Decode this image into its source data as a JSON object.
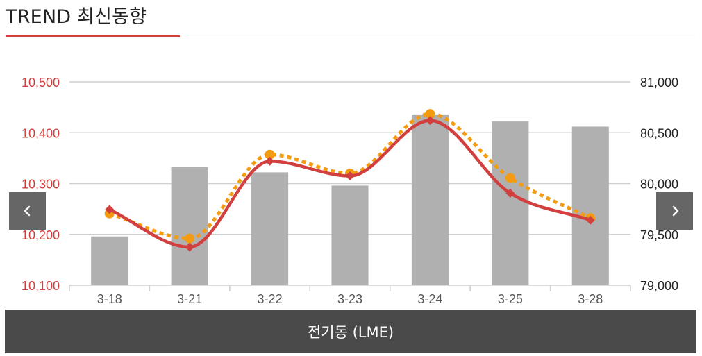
{
  "header": {
    "title": "TREND 최신동향"
  },
  "footer": {
    "label": "전기동 (LME)"
  },
  "icons": {
    "prev": "chevron-left-icon",
    "next": "chevron-right-icon"
  },
  "colors": {
    "accent": "#d23f3f",
    "bars": "#b0b0b0",
    "dotted_line": "#f39c12",
    "nav_button": "#666666",
    "footer_bar": "#4a4a4a"
  },
  "chart_data": {
    "type": "bar",
    "categories": [
      "3-18",
      "3-21",
      "3-22",
      "3-23",
      "3-24",
      "3-25",
      "3-28"
    ],
    "left_axis": {
      "min": 10100,
      "max": 10500,
      "ticks": [
        "10,100",
        "10,200",
        "10,300",
        "10,400",
        "10,500"
      ],
      "color": "#d23f3f"
    },
    "right_axis": {
      "min": 79000,
      "max": 81000,
      "ticks": [
        "79,000",
        "79,500",
        "80,000",
        "80,500",
        "81,000"
      ],
      "color": "#222222"
    },
    "series": [
      {
        "kind": "bar",
        "axis": "right",
        "color": "#b0b0b0",
        "values": [
          79480,
          80160,
          80110,
          79980,
          80680,
          80610,
          80560
        ]
      },
      {
        "kind": "line",
        "axis": "left",
        "color": "#d23f3f",
        "marker": "diamond",
        "values": [
          10249,
          10175,
          10344,
          10315,
          10424,
          10281,
          10228
        ]
      },
      {
        "kind": "line",
        "axis": "left",
        "color": "#f39c12",
        "marker": "circle",
        "dashed": true,
        "values": [
          10241,
          10192,
          10357,
          10320,
          10437,
          10311,
          10232
        ]
      }
    ],
    "grid": true,
    "legend": "none"
  }
}
